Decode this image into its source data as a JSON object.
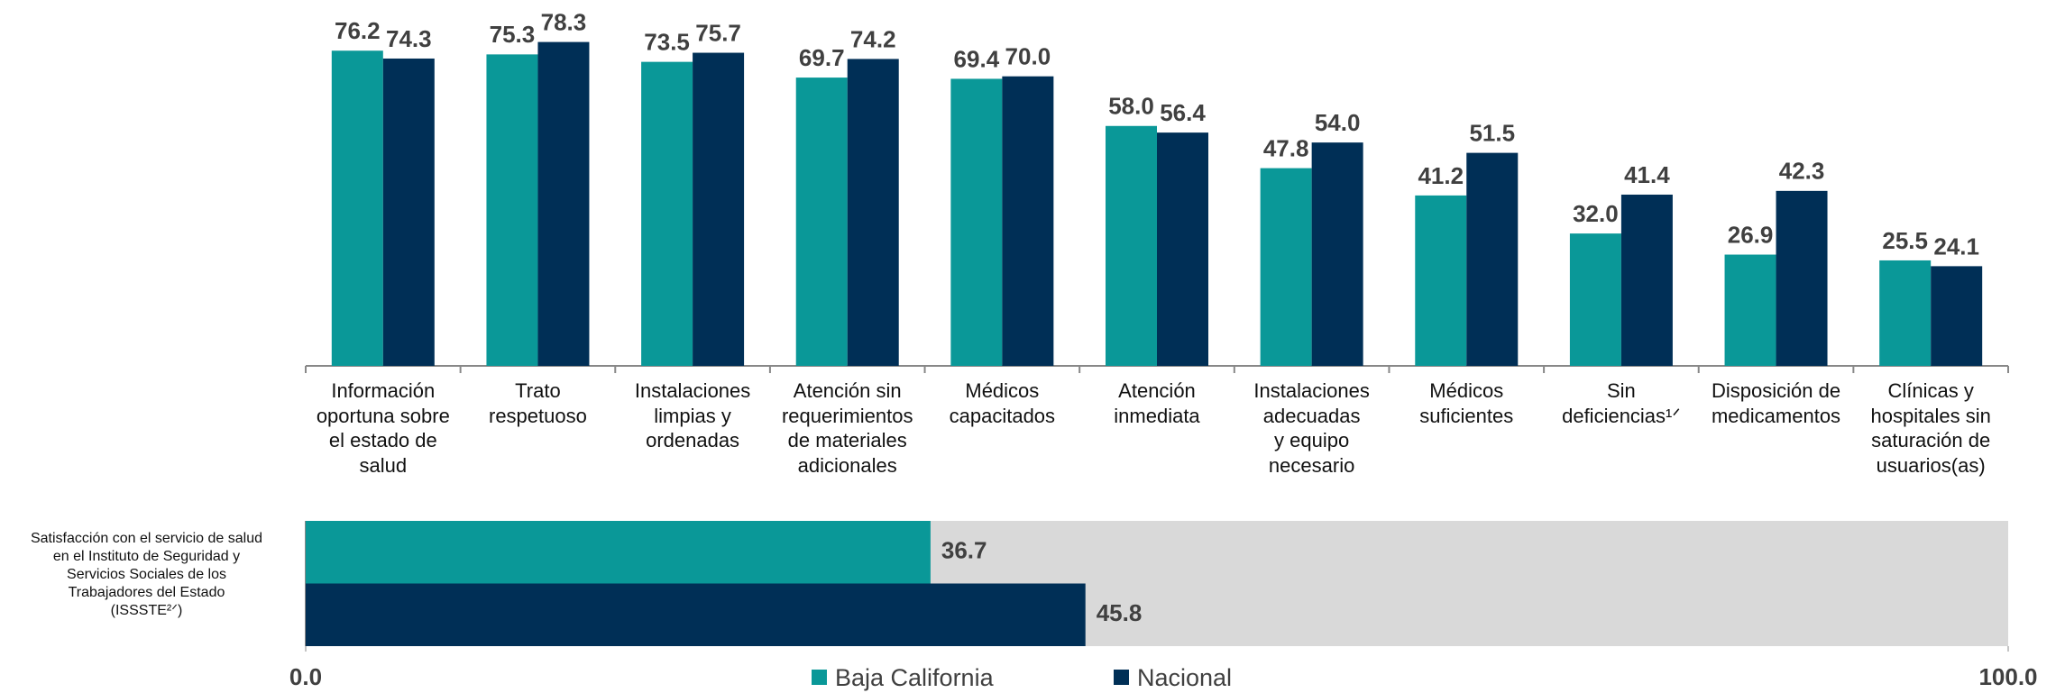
{
  "chart_data": [
    {
      "type": "bar",
      "categories": [
        "Información\noportuna sobre\nel estado de\nsalud",
        "Trato\nrespetuoso",
        "Instalaciones\nlimpias y\nordenadas",
        "Atención sin\nrequerimientos\nde materiales\nadicionales",
        "Médicos\ncapacitados",
        "Atención\ninmediata",
        "Instalaciones\nadecuadas\ny equipo\nnecesario",
        "Médicos\nsuficientes",
        "Sin\ndeficiencias¹ᐟ",
        "Disposición de\nmedicamentos",
        "Clínicas y\nhospitales sin\nsaturación de\nusuarios(as)"
      ],
      "series": [
        {
          "name": "Baja California",
          "color": "#0a9898",
          "values": [
            76.2,
            75.3,
            73.5,
            69.7,
            69.4,
            58.0,
            47.8,
            41.2,
            32.0,
            26.9,
            25.5
          ],
          "value_labels": [
            "76.2",
            "75.3",
            "73.5",
            "69.7",
            "69.4",
            "58.0",
            "47.8",
            "41.2",
            "32.0",
            "26.9",
            "25.5"
          ]
        },
        {
          "name": "Nacional",
          "color": "#002f56",
          "values": [
            74.3,
            78.3,
            75.7,
            74.2,
            70.0,
            56.4,
            54.0,
            51.5,
            41.4,
            42.3,
            24.1
          ],
          "value_labels": [
            "74.3",
            "78.3",
            "75.7",
            "74.2",
            "70.0",
            "56.4",
            "54.0",
            "51.5",
            "41.4",
            "42.3",
            "24.1"
          ]
        }
      ]
    },
    {
      "type": "barh",
      "categories": [
        "Satisfacción con el servicio de salud\nen el Instituto de Seguridad y\nServicios Sociales de los\nTrabajadores del Estado\n(ISSSTE²ᐟ)"
      ],
      "series": [
        {
          "name": "Baja California",
          "color": "#0a9898",
          "values": [
            36.7
          ]
        },
        {
          "name": "Nacional",
          "color": "#002f56",
          "values": [
            45.8
          ]
        }
      ],
      "xlim": [
        0,
        100
      ],
      "xticks": [
        {
          "value": 0,
          "label": "0.0"
        },
        {
          "value": 100,
          "label": "100.0"
        }
      ]
    }
  ]
}
